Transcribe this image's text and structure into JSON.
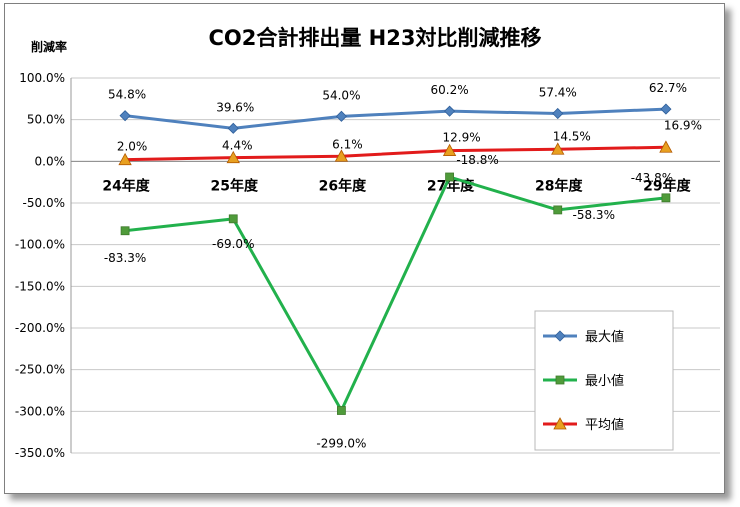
{
  "chart_data": {
    "type": "line",
    "title": "CO2合計排出量 H23対比削減推移",
    "ylabel": "削減率",
    "categories": [
      "24年度",
      "25年度",
      "26年度",
      "27年度",
      "28年度",
      "29年度"
    ],
    "ylim": [
      -350,
      100
    ],
    "yticks": [
      "100.0%",
      "50.0%",
      "0.0%",
      "-50.0%",
      "-100.0%",
      "-150.0%",
      "-200.0%",
      "-250.0%",
      "-300.0%",
      "-350.0%"
    ],
    "grid": true,
    "legend_position": "bottom-right",
    "series": [
      {
        "name": "最大値",
        "color": "#4f81bd",
        "marker": "diamond",
        "values": [
          54.8,
          39.6,
          54.0,
          60.2,
          57.4,
          62.7
        ],
        "labels": [
          "54.8%",
          "39.6%",
          "54.0%",
          "60.2%",
          "57.4%",
          "62.7%"
        ]
      },
      {
        "name": "最小値",
        "color": "#22b14c",
        "marker_color": "#4f9b3a",
        "marker": "square",
        "values": [
          -83.3,
          -69.0,
          -299.0,
          -18.8,
          -58.3,
          -43.8
        ],
        "labels": [
          "-83.3%",
          "-69.0%",
          "-299.0%",
          "-18.8%",
          "-58.3%",
          "-43.8%"
        ]
      },
      {
        "name": "平均値",
        "color": "#e21b1b",
        "marker_color": "#e8a020",
        "marker": "triangle",
        "values": [
          2.0,
          4.4,
          6.1,
          12.9,
          14.5,
          16.9
        ],
        "labels": [
          "2.0%",
          "4.4%",
          "6.1%",
          "12.9%",
          "14.5%",
          "16.9%"
        ]
      }
    ]
  }
}
